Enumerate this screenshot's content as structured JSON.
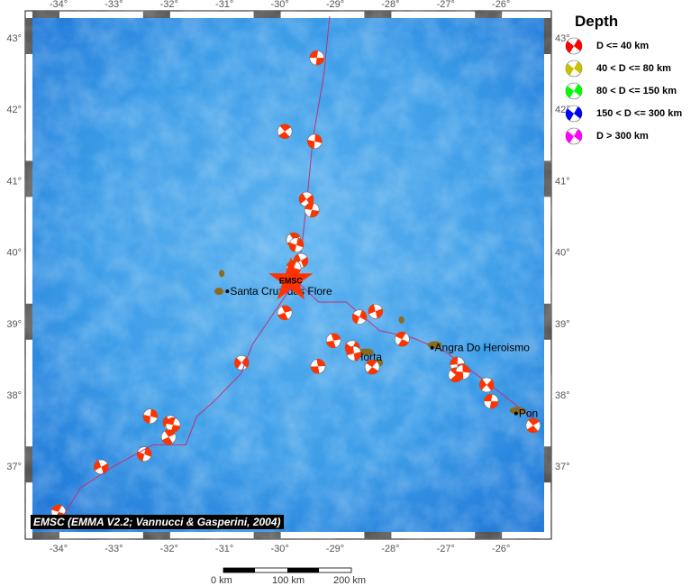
{
  "legend": {
    "title": "Depth",
    "items": [
      {
        "label": "D <= 40 km",
        "color": "#ff0000"
      },
      {
        "label": "40 < D <= 80 km",
        "color": "#c8c000"
      },
      {
        "label": "80 < D <= 150 km",
        "color": "#00ff00"
      },
      {
        "label": "150 < D <= 300 km",
        "color": "#0000ff"
      },
      {
        "label": "D > 300 km",
        "color": "#ff00ff"
      }
    ]
  },
  "axes": {
    "lon_ticks": [
      "-34°",
      "-33°",
      "-32°",
      "-31°",
      "-30°",
      "-29°",
      "-28°",
      "-27°",
      "-26°"
    ],
    "lat_ticks": [
      "37°",
      "38°",
      "39°",
      "40°",
      "41°",
      "42°",
      "43°"
    ]
  },
  "extent": {
    "lon": [
      -34.5,
      -25.3
    ],
    "lat": [
      36.2,
      43.3
    ]
  },
  "places": [
    {
      "name": "Santa Cruz das Flore",
      "lon": -30.9,
      "lat": 39.45
    },
    {
      "name": "Horta",
      "lon": -28.63,
      "lat": 38.53
    },
    {
      "name": "Angra Do Heroismo",
      "lon": -27.2,
      "lat": 38.66
    },
    {
      "name": "Pon",
      "lon": -25.68,
      "lat": 37.74
    }
  ],
  "marker": {
    "label": "EMSC",
    "lon": -29.8,
    "lat": 39.6,
    "color": "#ff3300"
  },
  "events": [
    [
      -29.33,
      42.72
    ],
    [
      -29.91,
      41.69
    ],
    [
      -29.37,
      41.55
    ],
    [
      -29.52,
      40.74
    ],
    [
      -29.42,
      40.59
    ],
    [
      -29.75,
      40.17
    ],
    [
      -29.7,
      40.1
    ],
    [
      -29.62,
      39.88
    ],
    [
      -29.75,
      39.78
    ],
    [
      -29.91,
      39.15
    ],
    [
      -28.56,
      39.09
    ],
    [
      -28.27,
      39.17
    ],
    [
      -27.79,
      38.78
    ],
    [
      -29.03,
      38.76
    ],
    [
      -28.69,
      38.66
    ],
    [
      -28.66,
      38.58
    ],
    [
      -28.33,
      38.39
    ],
    [
      -29.31,
      38.4
    ],
    [
      -30.69,
      38.45
    ],
    [
      -26.79,
      38.43
    ],
    [
      -26.82,
      38.28
    ],
    [
      -26.69,
      38.32
    ],
    [
      -26.26,
      38.14
    ],
    [
      -26.18,
      37.91
    ],
    [
      -25.42,
      37.57
    ],
    [
      -32.34,
      37.7
    ],
    [
      -31.98,
      37.61
    ],
    [
      -31.93,
      37.58
    ],
    [
      -32.01,
      37.41
    ],
    [
      -32.45,
      37.17
    ],
    [
      -33.23,
      36.99
    ],
    [
      -34.0,
      36.36
    ]
  ],
  "attribution": "EMSC (EMMA V2.2; Vannucci & Gasperini, 2004)",
  "scale": {
    "labels": [
      "0 km",
      "100 km",
      "200 km"
    ]
  },
  "colors": {
    "ocean": "#2e8ee6",
    "event": "#ff3300",
    "ridge": "#c0307a",
    "land": "#8a6a20"
  }
}
